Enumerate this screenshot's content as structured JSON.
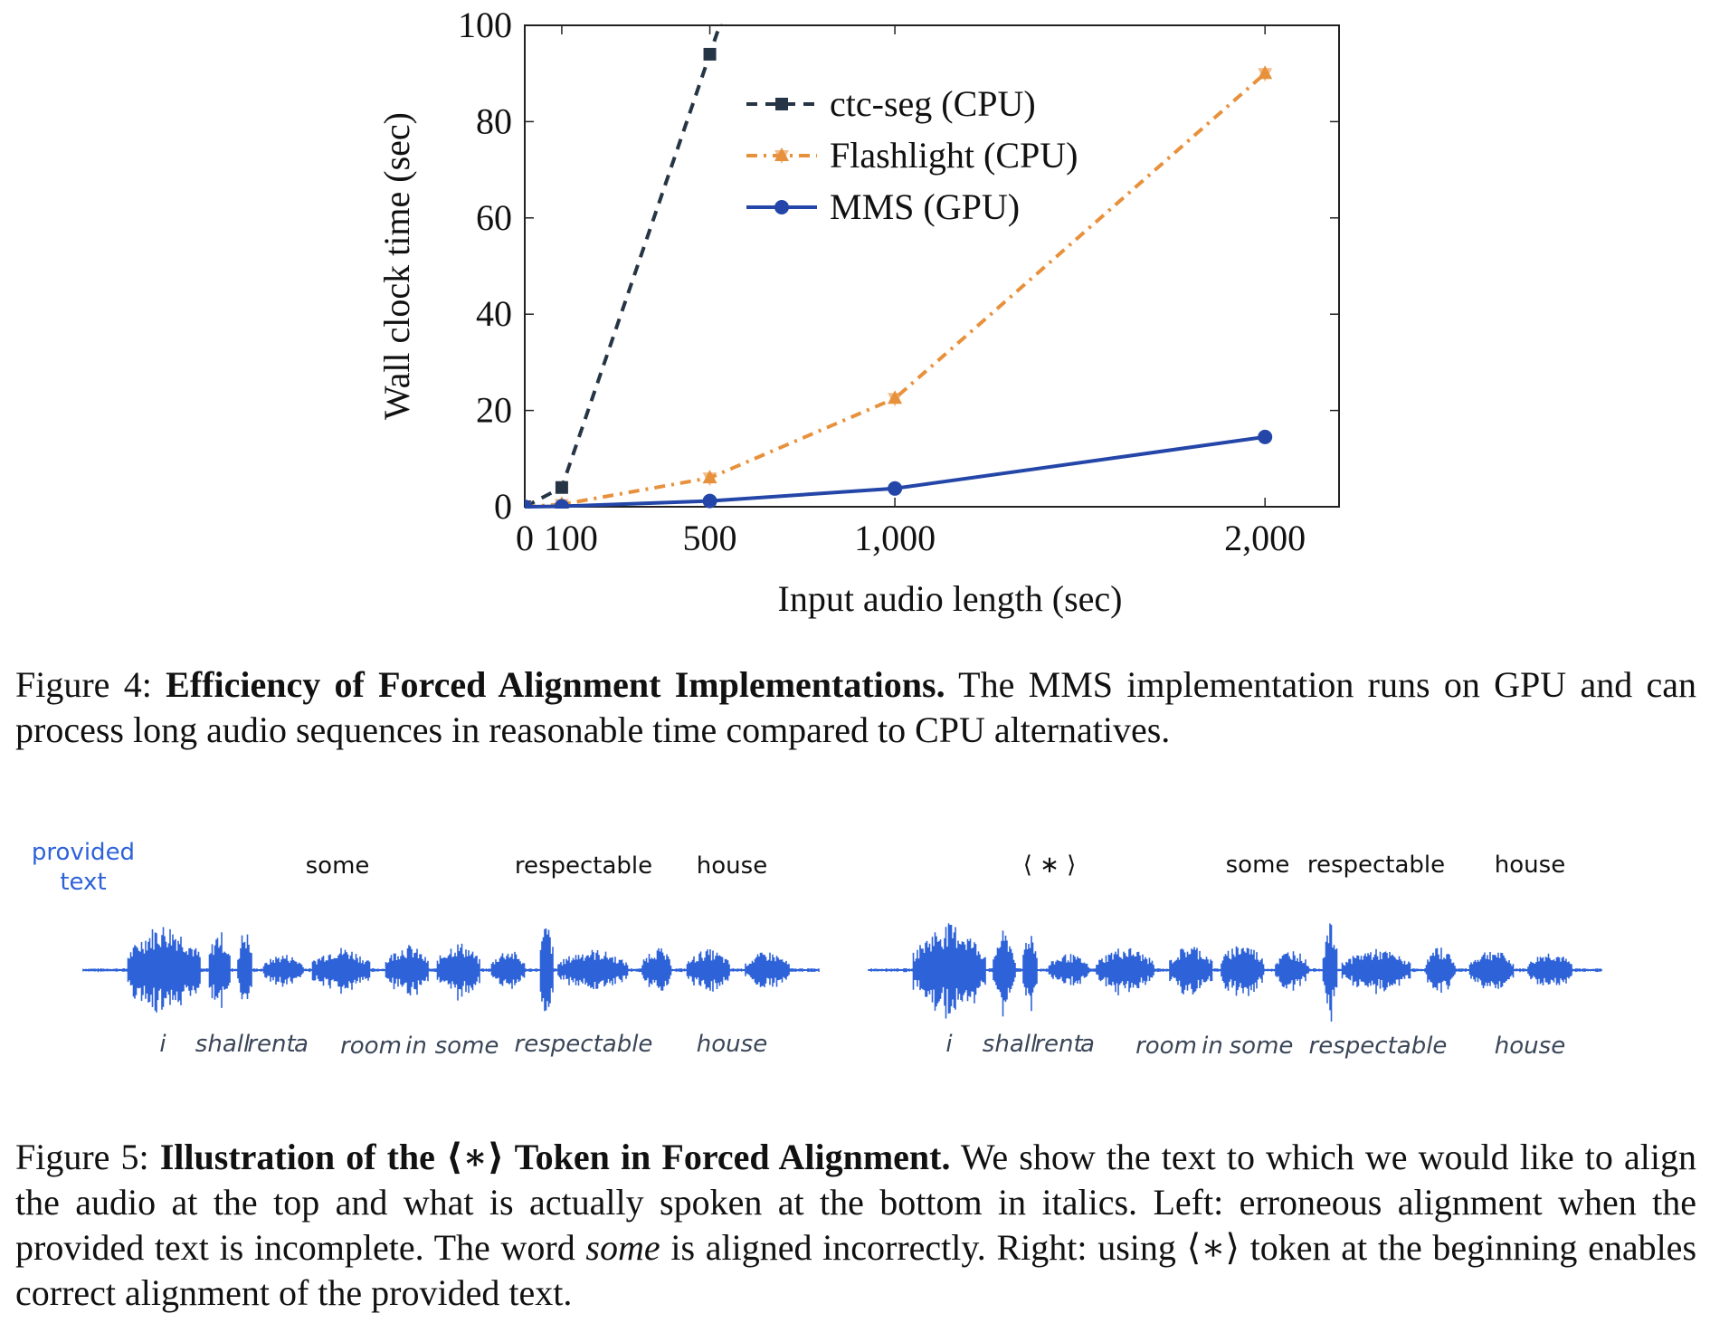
{
  "chart_data": {
    "type": "line",
    "xlabel": "Input audio length (sec)",
    "ylabel": "Wall clock time (sec)",
    "xlim": [
      0,
      2200
    ],
    "ylim": [
      0,
      100
    ],
    "xticks": [
      0,
      100,
      500,
      1000,
      2000
    ],
    "xtick_labels": [
      "0",
      "100",
      "500",
      "1,000",
      "2,000"
    ],
    "yticks": [
      0,
      20,
      40,
      60,
      80,
      100
    ],
    "ytick_labels": [
      "0",
      "20",
      "40",
      "60",
      "80",
      "100"
    ],
    "legend_position": "top-left-inside",
    "series": [
      {
        "name": "ctc-seg (CPU)",
        "color": "#263545",
        "style": "dashed",
        "marker": "square",
        "x": [
          0,
          100,
          500
        ],
        "y": [
          0,
          4,
          94
        ]
      },
      {
        "name": "Flashlight (CPU)",
        "color": "#e8913c",
        "style": "dashdot",
        "marker": "triangle",
        "x": [
          0,
          100,
          500,
          1000,
          2000
        ],
        "y": [
          0,
          0.5,
          6,
          22.5,
          90
        ]
      },
      {
        "name": "MMS (GPU)",
        "color": "#2446a8",
        "style": "solid",
        "marker": "circle",
        "x": [
          0,
          100,
          500,
          1000,
          2000
        ],
        "y": [
          0,
          0.1,
          1.2,
          3.8,
          14.5
        ]
      }
    ]
  },
  "figure4": {
    "prefix": "Figure 4: ",
    "title": "Efficiency of Forced Alignment Implementations.",
    "text": " The MMS implementation runs on GPU and can process long audio sequences in reasonable time compared to CPU alternatives."
  },
  "figure5": {
    "prefix": "Figure 5: ",
    "title_a": "Illustration of the ",
    "token": "⟨∗⟩",
    "title_b": " Token in Forced Alignment.",
    "text_a": " We show the text to which we would like to align the audio at the top and what is actually spoken at the bottom in italics. Left: erroneous alignment when the provided text is incomplete. The word ",
    "emph": "some",
    "text_b": " is aligned incorrectly. Right: using ",
    "token2": "⟨∗⟩",
    "text_c": " token at the beginning enables correct alignment of the provided text."
  },
  "waveform": {
    "accent": "#2e62d9",
    "provided_label_line1": "provided",
    "provided_label_line2": "text",
    "left_top_words": [
      "some",
      "respectable",
      "house"
    ],
    "right_top_words": [
      "⟨ ∗ ⟩",
      "some",
      "respectable",
      "house"
    ],
    "bottom_words": [
      "i",
      "shall",
      "rent",
      "a",
      "room",
      "in",
      "some",
      "respectable",
      "house"
    ]
  }
}
